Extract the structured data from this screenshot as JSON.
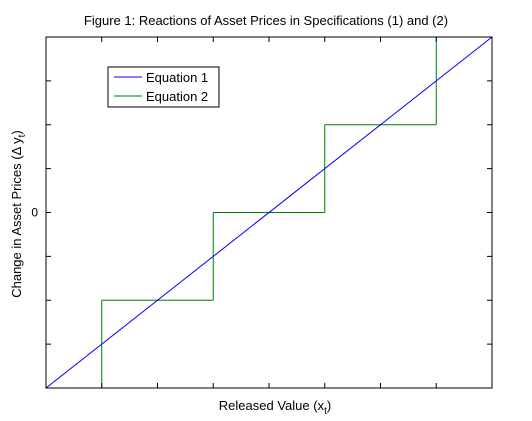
{
  "chart_data": {
    "type": "line",
    "title": "Figure 1: Reactions of Asset Prices in Specifications (1) and (2)",
    "xlabel_main": "Released Value (x",
    "xlabel_sub": "t",
    "xlabel_close": ")",
    "ylabel_main": "Change in Asset Prices (Δ y",
    "ylabel_sub": "t",
    "ylabel_close": ")",
    "xlim": [
      0,
      8
    ],
    "ylim": [
      -4,
      4
    ],
    "x_ticks": [
      0,
      1,
      2,
      3,
      4,
      5,
      6,
      7,
      8
    ],
    "y_ticks": [
      -4,
      -3,
      -2,
      -1,
      0,
      1,
      2,
      3,
      4
    ],
    "y_tick_labels": [
      {
        "value": 0,
        "label": "0"
      }
    ],
    "grid": false,
    "legend_position": "top-left",
    "series": [
      {
        "name": "Equation 1",
        "color": "#0000ff",
        "style": "solid",
        "x": [
          0,
          8
        ],
        "y": [
          -4,
          4
        ]
      },
      {
        "name": "Equation 2",
        "color": "#007f00",
        "style": "step",
        "levels": [
          {
            "x0": 0,
            "x1": 1,
            "y": -4
          },
          {
            "x0": 1,
            "x1": 3,
            "y": -2
          },
          {
            "x0": 3,
            "x1": 5,
            "y": 0
          },
          {
            "x0": 5,
            "x1": 7,
            "y": 2
          },
          {
            "x0": 7,
            "x1": 8,
            "y": 4
          }
        ]
      }
    ]
  }
}
